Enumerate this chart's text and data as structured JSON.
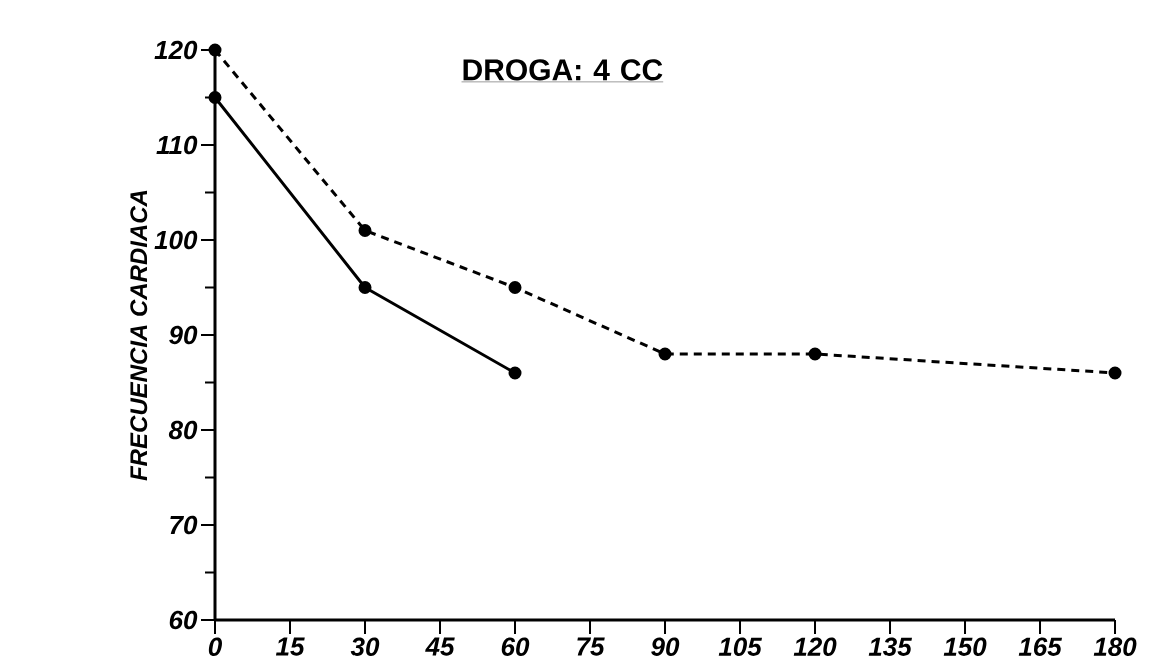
{
  "chart_data": {
    "type": "line",
    "title": "DROGA: 4 CC",
    "ylabel": "FRECUENCIA CARDIACA",
    "xlim": [
      0,
      180
    ],
    "xticks": [
      0,
      15,
      30,
      45,
      60,
      75,
      90,
      105,
      120,
      135,
      150,
      165,
      180
    ],
    "ylim": [
      60,
      120
    ],
    "yticks": [
      60,
      70,
      80,
      90,
      100,
      110,
      120
    ],
    "marker": "circle",
    "grid": false,
    "series": [
      {
        "color": "#000000",
        "line_style": "solid",
        "x": [
          0,
          30,
          60
        ],
        "values": [
          115,
          95,
          86
        ]
      },
      {
        "color": "#000000",
        "line_style": "dashed",
        "x": [
          0,
          30,
          60,
          90,
          120,
          180
        ],
        "values": [
          120,
          101,
          95,
          88,
          88,
          86
        ]
      }
    ]
  }
}
